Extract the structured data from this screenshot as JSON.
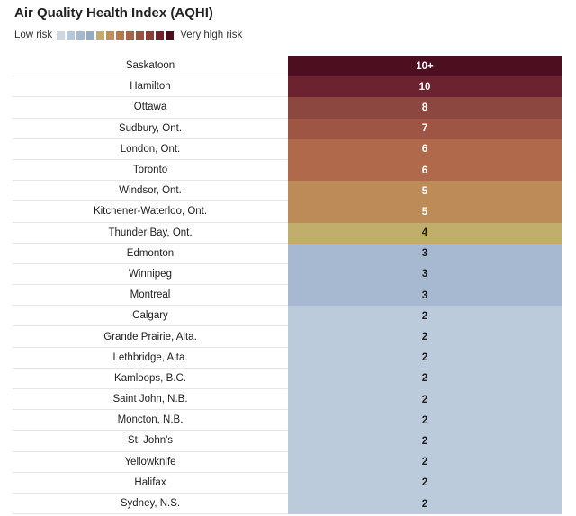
{
  "chart_data": {
    "type": "table",
    "title": "Air Quality Health Index (AQHI)",
    "legend": {
      "low_label": "Low risk",
      "high_label": "Very high risk",
      "colors": [
        "#cdd7e3",
        "#b7c8db",
        "#a5b9d2",
        "#94abc8",
        "#c2ac6a",
        "#bf9158",
        "#b67a4f",
        "#a86447",
        "#9a5043",
        "#8c3c3b",
        "#6d2230",
        "#4d0f1f"
      ]
    },
    "rows": [
      {
        "city": "Saskatoon",
        "aqhi": "10+",
        "color": "#4d0f1f",
        "text_color": "#ffffff"
      },
      {
        "city": "Hamilton",
        "aqhi": "10",
        "color": "#6d2230",
        "text_color": "#ffffff"
      },
      {
        "city": "Ottawa",
        "aqhi": "8",
        "color": "#8c4840",
        "text_color": "#ffffff"
      },
      {
        "city": "Sudbury, Ont.",
        "aqhi": "7",
        "color": "#9e5544",
        "text_color": "#ffffff"
      },
      {
        "city": "London, Ont.",
        "aqhi": "6",
        "color": "#b06a4b",
        "text_color": "#ffffff"
      },
      {
        "city": "Toronto",
        "aqhi": "6",
        "color": "#b06a4b",
        "text_color": "#ffffff"
      },
      {
        "city": "Windsor, Ont.",
        "aqhi": "5",
        "color": "#bd8b58",
        "text_color": "#ffffff"
      },
      {
        "city": "Kitchener-Waterloo, Ont.",
        "aqhi": "5",
        "color": "#bd8b58",
        "text_color": "#ffffff"
      },
      {
        "city": "Thunder Bay, Ont.",
        "aqhi": "4",
        "color": "#c1ad6c",
        "text_color": "#222222"
      },
      {
        "city": "Edmonton",
        "aqhi": "3",
        "color": "#a7b9d0",
        "text_color": "#222222"
      },
      {
        "city": "Winnipeg",
        "aqhi": "3",
        "color": "#a7b9d0",
        "text_color": "#222222"
      },
      {
        "city": "Montreal",
        "aqhi": "3",
        "color": "#a7b9d0",
        "text_color": "#222222"
      },
      {
        "city": "Calgary",
        "aqhi": "2",
        "color": "#bccbdc",
        "text_color": "#222222"
      },
      {
        "city": "Grande Prairie, Alta.",
        "aqhi": "2",
        "color": "#bccbdc",
        "text_color": "#222222"
      },
      {
        "city": "Lethbridge, Alta.",
        "aqhi": "2",
        "color": "#bccbdc",
        "text_color": "#222222"
      },
      {
        "city": "Kamloops, B.C.",
        "aqhi": "2",
        "color": "#bccbdc",
        "text_color": "#222222"
      },
      {
        "city": "Saint John, N.B.",
        "aqhi": "2",
        "color": "#bccbdc",
        "text_color": "#222222"
      },
      {
        "city": "Moncton, N.B.",
        "aqhi": "2",
        "color": "#bccbdc",
        "text_color": "#222222"
      },
      {
        "city": "St. John's",
        "aqhi": "2",
        "color": "#bccbdc",
        "text_color": "#222222"
      },
      {
        "city": "Yellowknife",
        "aqhi": "2",
        "color": "#bccbdc",
        "text_color": "#222222"
      },
      {
        "city": "Halifax",
        "aqhi": "2",
        "color": "#bccbdc",
        "text_color": "#222222"
      },
      {
        "city": "Sydney, N.S.",
        "aqhi": "2",
        "color": "#bccbdc",
        "text_color": "#222222"
      }
    ]
  }
}
